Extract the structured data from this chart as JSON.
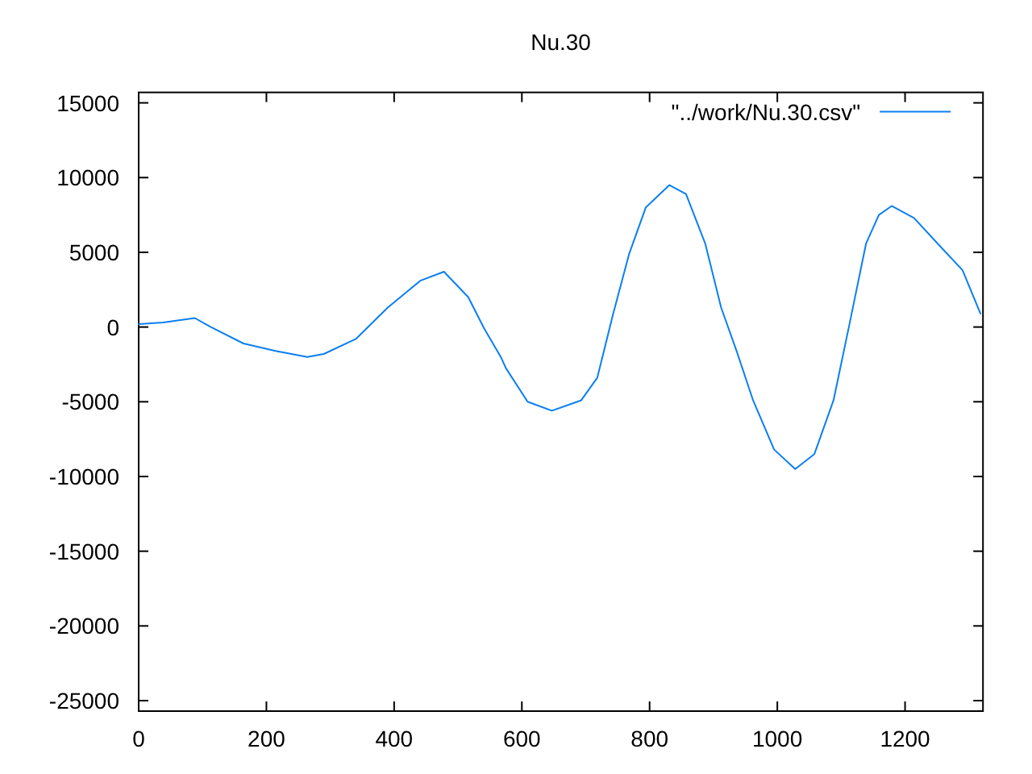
{
  "chart_data": {
    "type": "line",
    "title": "Nu.30",
    "xlim": [
      0,
      1322
    ],
    "ylim": [
      -25700,
      15700
    ],
    "xticks": [
      0,
      200,
      400,
      600,
      800,
      1000,
      1200
    ],
    "yticks": [
      -25000,
      -20000,
      -15000,
      -10000,
      -5000,
      0,
      5000,
      10000,
      15000
    ],
    "grid": false,
    "legend": "top right",
    "marker": "none",
    "line_style": "solid",
    "series": [
      {
        "name": "\"../work/Nu.30.csv\"",
        "color": "#0a7ff0",
        "x": [
          0,
          38,
          88,
          113,
          164,
          214,
          264,
          290,
          340,
          390,
          441,
          478,
          516,
          541,
          567,
          575,
          609,
          647,
          693,
          718,
          743,
          768,
          794,
          831,
          857,
          887,
          912,
          937,
          962,
          995,
          1028,
          1058,
          1088,
          1113,
          1139,
          1159,
          1179,
          1214,
          1255,
          1290,
          1318
        ],
        "values": [
          200,
          300,
          600,
          0,
          -1100,
          -1600,
          -2000,
          -1800,
          -800,
          1300,
          3100,
          3700,
          2000,
          -100,
          -2000,
          -2750,
          -5000,
          -5600,
          -4900,
          -3400,
          900,
          4900,
          8000,
          9500,
          8900,
          5600,
          1300,
          -1700,
          -4900,
          -8200,
          -9500,
          -8500,
          -4900,
          200,
          5600,
          7500,
          8100,
          7300,
          5400,
          3800,
          900
        ]
      }
    ]
  }
}
